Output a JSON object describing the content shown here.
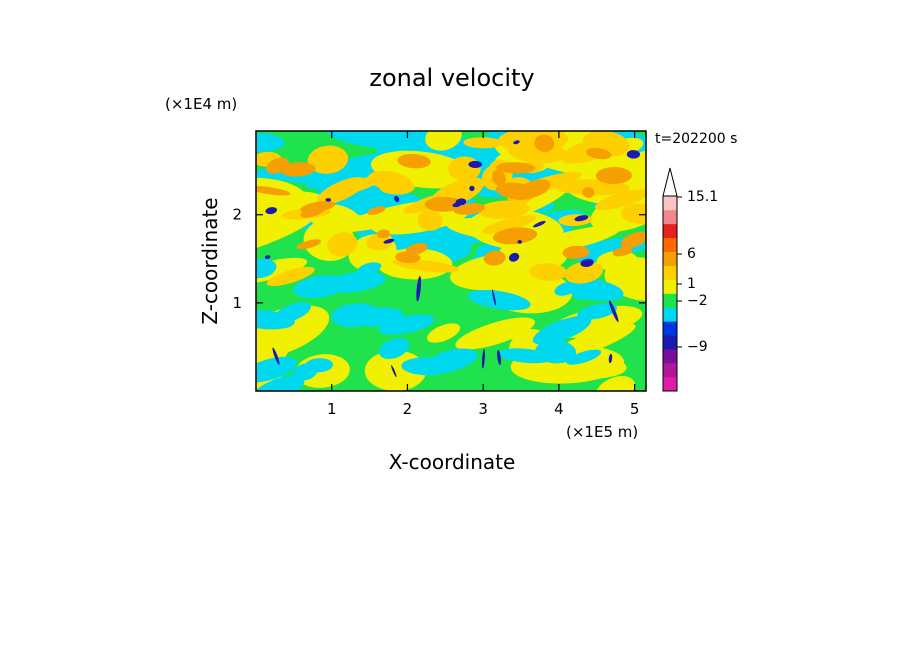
{
  "chart_data": {
    "type": "heatmap",
    "title": "zonal velocity",
    "xlabel": "X-coordinate",
    "ylabel": "Z-coordinate",
    "x_unit": "(×1E5 m)",
    "y_unit": "(×1E4 m)",
    "time_label": "t=202200 s",
    "xlim": [
      0,
      5.15
    ],
    "ylim": [
      0,
      2.95
    ],
    "x_ticks": [
      "1",
      "2",
      "3",
      "4",
      "5"
    ],
    "y_ticks": [
      "1",
      "2"
    ],
    "x_tick_values": [
      1,
      2,
      3,
      4,
      5
    ],
    "y_tick_values": [
      1,
      2
    ],
    "colorbar": {
      "labels": [
        "15.1",
        "6",
        "1",
        "−2",
        "−9"
      ],
      "colors": [
        "#e01ca8",
        "#b0169c",
        "#7a0f9a",
        "#1a1ab0",
        "#0036e0",
        "#00d8f0",
        "#1fe24c",
        "#f0f000",
        "#ffd000",
        "#f5a000",
        "#ff6a00",
        "#e8201e",
        "#f08a8a",
        "#f8c4c4"
      ]
    },
    "field_palette": [
      "#00d8f0",
      "#1fe24c",
      "#f0f000",
      "#ffd000",
      "#f5a000",
      "#1a1ab0"
    ]
  }
}
